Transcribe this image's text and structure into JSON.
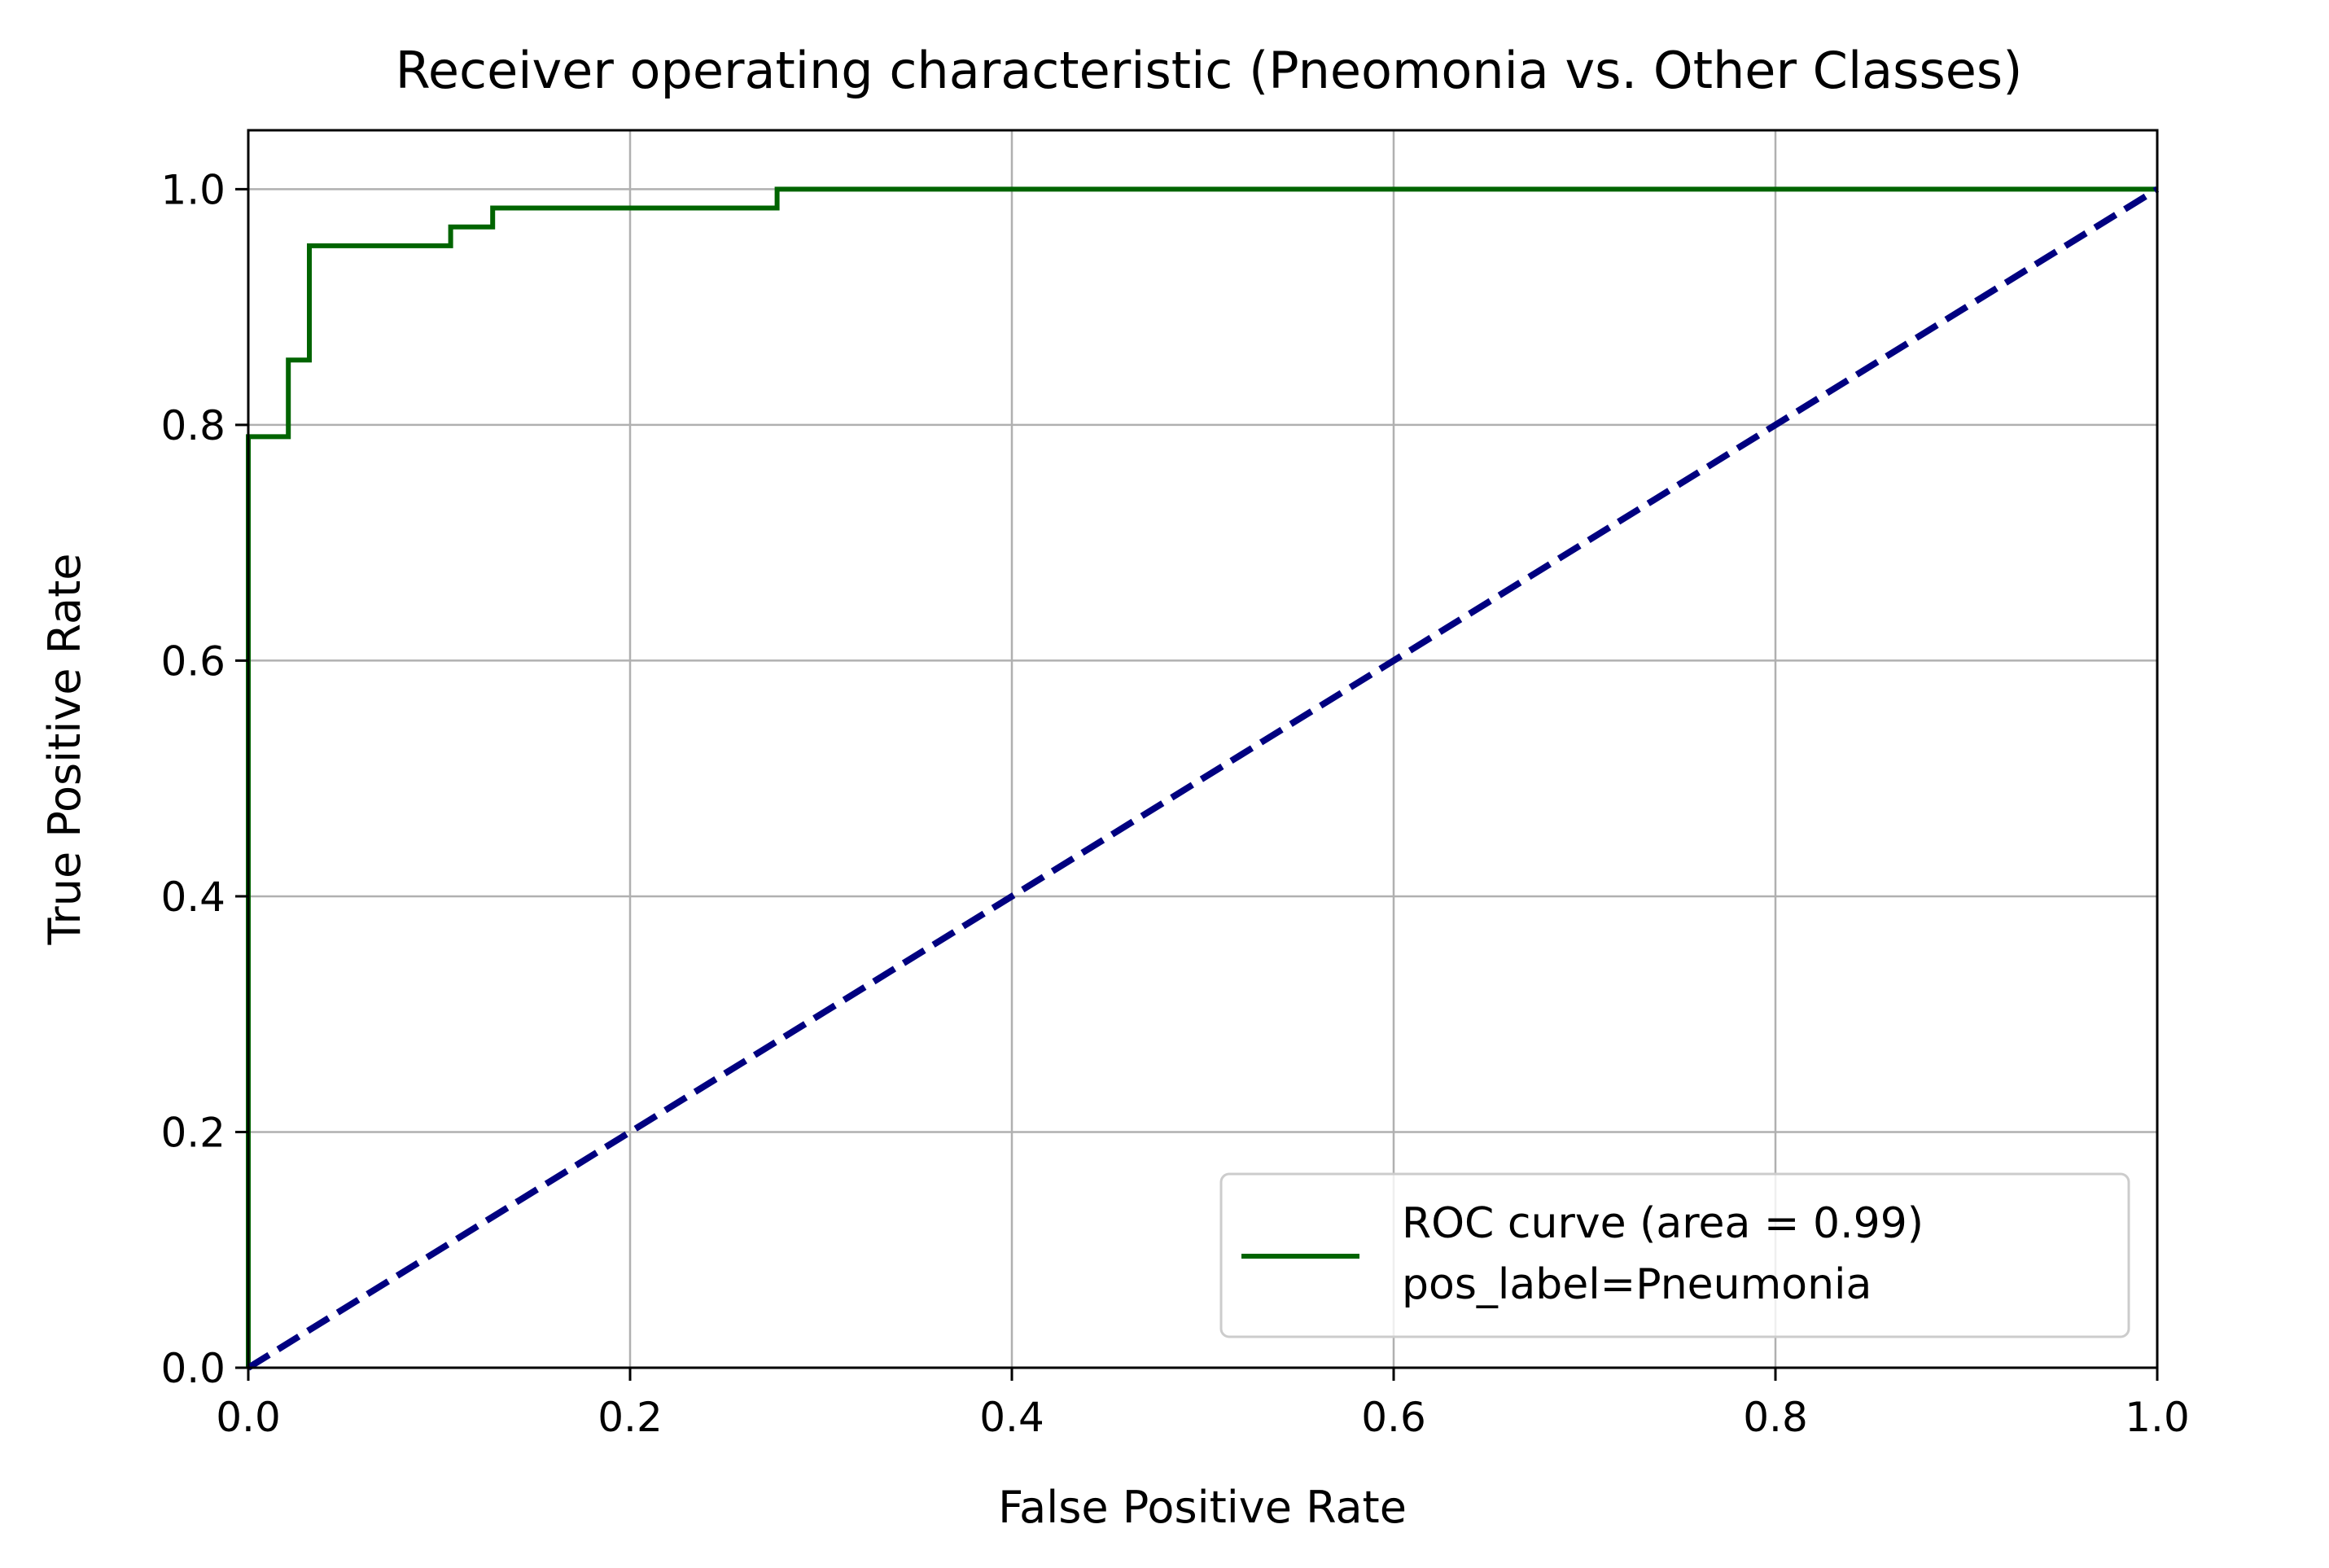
{
  "chart_data": {
    "type": "line",
    "title": "Receiver operating characteristic (Pneomonia vs. Other Classes)",
    "xlabel": "False Positive Rate",
    "ylabel": "True Positive Rate",
    "xlim": [
      0.0,
      1.0
    ],
    "ylim": [
      0.0,
      1.05
    ],
    "xticks": [
      "0.0",
      "0.2",
      "0.4",
      "0.6",
      "0.8",
      "1.0"
    ],
    "yticks": [
      "0.0",
      "0.2",
      "0.4",
      "0.6",
      "0.8",
      "1.0"
    ],
    "grid": true,
    "legend_position": "lower-right",
    "series": [
      {
        "name": "ROC curve (area = 0.99)\npos_label=Pneumonia",
        "legend_lines": [
          "ROC curve (area = 0.99)",
          "pos_label=Pneumonia"
        ],
        "style": "step",
        "color": "#006400",
        "x": [
          0.0,
          0.0,
          0.021,
          0.021,
          0.032,
          0.032,
          0.106,
          0.106,
          0.128,
          0.128,
          0.277,
          0.277,
          1.0
        ],
        "y": [
          0.0,
          0.79,
          0.79,
          0.855,
          0.855,
          0.952,
          0.952,
          0.968,
          0.968,
          0.984,
          0.984,
          1.0,
          1.0
        ]
      },
      {
        "style": "dashed",
        "color": "#000080",
        "x": [
          0.0,
          1.0
        ],
        "y": [
          0.0,
          1.0
        ]
      }
    ]
  },
  "colors": {
    "roc": "#006400",
    "diagonal": "#000080",
    "grid": "#b0b0b0"
  }
}
